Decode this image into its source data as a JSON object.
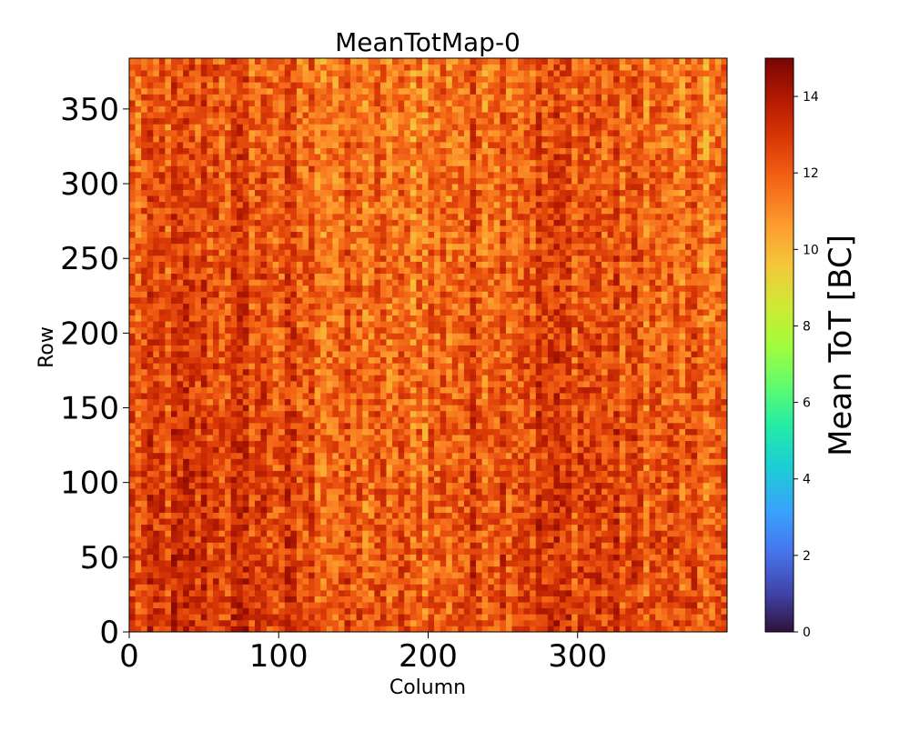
{
  "chart_data": {
    "type": "heatmap",
    "title": "MeanTotMap-0",
    "xlabel": "Column",
    "ylabel": "Row",
    "xlim": [
      0,
      400
    ],
    "ylim": [
      0,
      384
    ],
    "x_ticks": [
      0,
      100,
      200,
      300
    ],
    "y_ticks": [
      0,
      50,
      100,
      150,
      200,
      250,
      300,
      350
    ],
    "grid_shape": {
      "columns": 400,
      "rows": 384
    },
    "value_summary": {
      "typical_range": [
        10,
        15
      ],
      "mean_approx": 12.5
    },
    "colorbar": {
      "label": "Mean ToT [BC]",
      "range": [
        0,
        15
      ],
      "ticks": [
        0,
        2,
        4,
        6,
        8,
        10,
        12,
        14
      ],
      "colormap": "turbo"
    }
  }
}
